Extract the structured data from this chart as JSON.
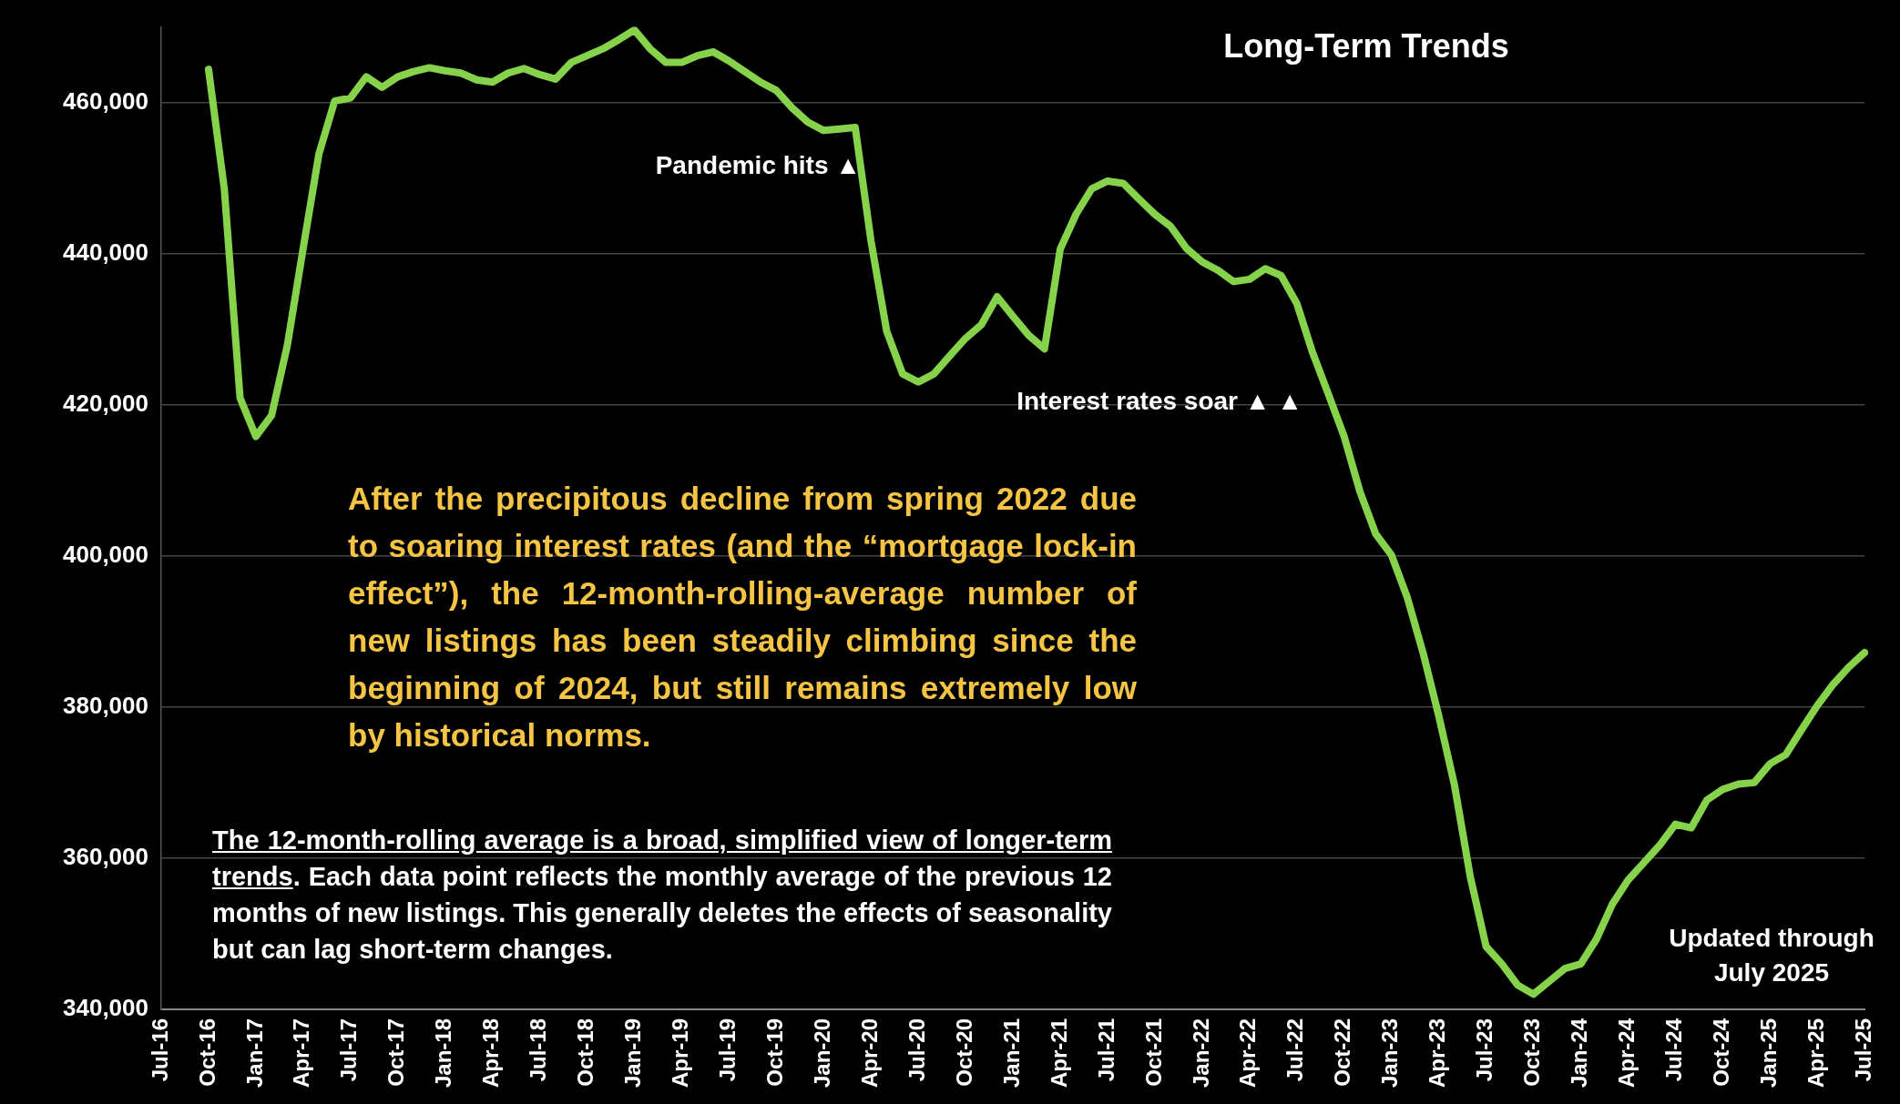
{
  "chart_data": {
    "type": "line",
    "title": "Long-Term Trends",
    "annotations": [
      "Pandemic hits ▲",
      "Interest rates soar ▲ ▲",
      "After the precipitous decline from spring 2022 due to soaring interest rates (and the “mortgage lock-in effect”), the 12-month-rolling-average number of new listings has been steadily climbing since the beginning of 2024, but still remains extremely low by historical norms.",
      "The 12-month-rolling average is a broad, simplified view of longer-term trends",
      ". Each data point reflects the monthly average of the previous 12 months of new listings. This generally deletes the effects of seasonality but can lag short-term changes.",
      "Updated through July 2025"
    ],
    "categories": [
      "Jul-16",
      null,
      null,
      "Oct-16",
      null,
      null,
      "Jan-17",
      null,
      null,
      "Apr-17",
      null,
      null,
      "Jul-17",
      null,
      null,
      "Oct-17",
      null,
      null,
      "Jan-18",
      null,
      null,
      "Apr-18",
      null,
      null,
      "Jul-18",
      null,
      null,
      "Oct-18",
      null,
      null,
      "Jan-19",
      null,
      null,
      "Apr-19",
      null,
      null,
      "Jul-19",
      null,
      null,
      "Oct-19",
      null,
      null,
      "Jan-20",
      null,
      null,
      "Apr-20",
      null,
      null,
      "Jul-20",
      null,
      null,
      "Oct-20",
      null,
      null,
      "Jan-21",
      null,
      null,
      "Apr-21",
      null,
      null,
      "Jul-21",
      null,
      null,
      "Oct-21",
      null,
      null,
      "Jan-22",
      null,
      null,
      "Apr-22",
      null,
      null,
      "Jul-22",
      null,
      null,
      "Oct-22",
      null,
      null,
      "Jan-23",
      null,
      null,
      "Apr-23",
      null,
      null,
      "Jul-23",
      null,
      null,
      "Oct-23",
      null,
      null,
      "Jan-24",
      null,
      null,
      "Apr-24",
      null,
      null,
      "Jul-24",
      null,
      null,
      "Oct-24",
      null,
      null,
      "Jan-25",
      null,
      null,
      "Apr-25",
      null,
      null,
      "Jul-25"
    ],
    "series": [
      {
        "color": "#86d24a",
        "values": [
          null,
          null,
          null,
          464400,
          448600,
          420900,
          415800,
          418600,
          427900,
          440700,
          453200,
          460200,
          460600,
          463400,
          462000,
          463400,
          464100,
          464600,
          464200,
          463900,
          463000,
          462700,
          463900,
          464500,
          463700,
          463100,
          465300,
          466200,
          467100,
          468300,
          469600,
          467100,
          465300,
          465300,
          466200,
          466700,
          465500,
          464100,
          462700,
          461600,
          459300,
          457400,
          456300,
          456500,
          456700,
          441700,
          429700,
          424100,
          423000,
          424100,
          426500,
          428800,
          430600,
          434300,
          431700,
          429200,
          427400,
          440600,
          445200,
          448600,
          449600,
          449300,
          447200,
          445200,
          443600,
          440700,
          438900,
          437800,
          436300,
          436600,
          438000,
          437100,
          433400,
          426900,
          421400,
          415800,
          408500,
          402900,
          400100,
          394500,
          387200,
          378800,
          369600,
          357500,
          348300,
          346000,
          343200,
          342000,
          343700,
          345400,
          346000,
          349300,
          353900,
          357100,
          359400,
          361700,
          364500,
          364000,
          367700,
          369100,
          369800,
          370000,
          372500,
          373700,
          377000,
          380200,
          383000,
          385300,
          387200
        ]
      }
    ],
    "ylim": [
      340000,
      470000
    ],
    "yticks": [
      {
        "value": 340000,
        "label": "340,000"
      },
      {
        "value": 360000,
        "label": "360,000"
      },
      {
        "value": 380000,
        "label": "380,000"
      },
      {
        "value": 400000,
        "label": "400,000"
      },
      {
        "value": 420000,
        "label": "420,000"
      },
      {
        "value": 440000,
        "label": "440,000"
      },
      {
        "value": 460000,
        "label": "460,000"
      }
    ],
    "grid": "y",
    "legend": false,
    "marker": "none",
    "line_style": "solid"
  }
}
